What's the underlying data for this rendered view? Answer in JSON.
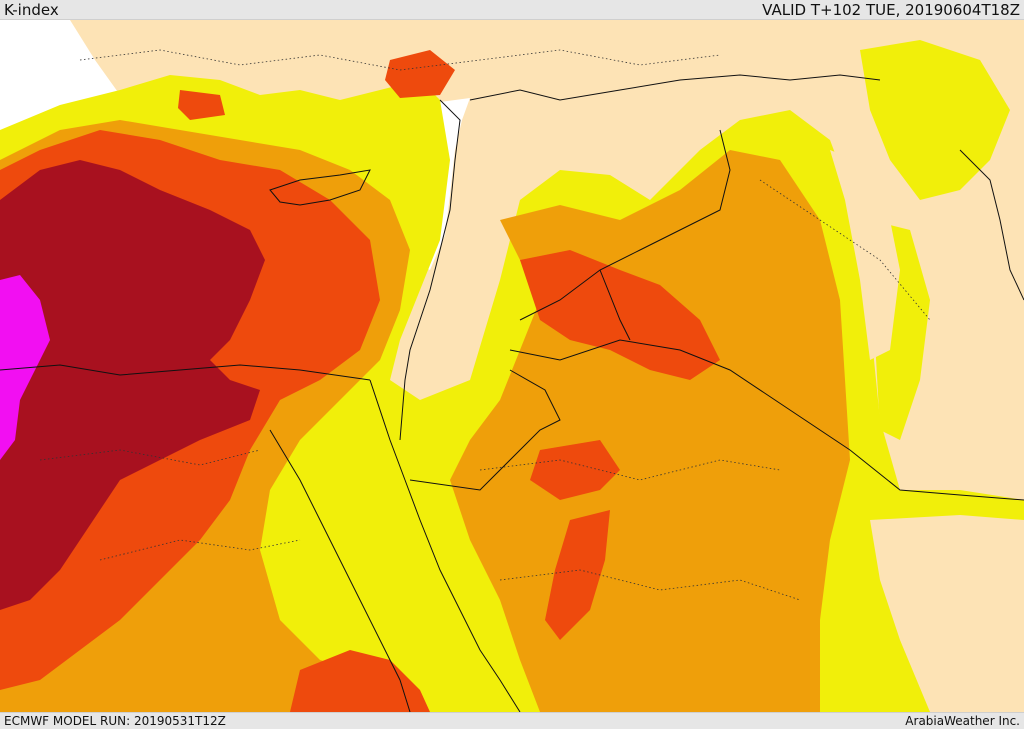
{
  "header": {
    "product_title": "K-index",
    "valid_time": "VALID T+102 TUE, 20190604T18Z"
  },
  "footer": {
    "model_run": "ECMWF MODEL RUN: 20190531T12Z",
    "provider": "ArabiaWeather Inc."
  },
  "legend_colors": {
    "k_lowest": "#fde3b5",
    "k_low": "#f1ef0a",
    "k_moderate": "#ef9f0a",
    "k_high": "#ee4a0d",
    "k_very_high": "#a8111f",
    "k_extreme": "#f20ff2",
    "sea_no_data": "#ffffff",
    "borders": "#111111"
  }
}
